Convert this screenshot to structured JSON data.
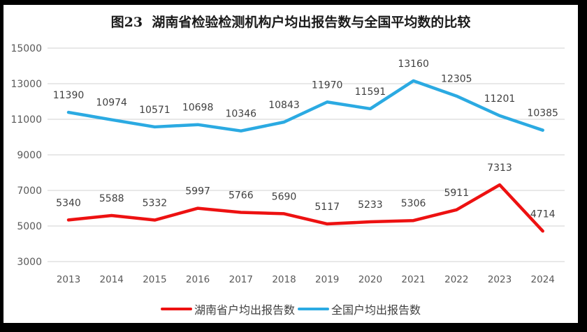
{
  "chart_data": {
    "type": "line",
    "title": "图23  湖南省检验检测机构户均出报告数与全国平均数的比较",
    "categories": [
      "2013",
      "2014",
      "2015",
      "2016",
      "2017",
      "2018",
      "2019",
      "2020",
      "2021",
      "2022",
      "2023",
      "2024"
    ],
    "series": [
      {
        "name": "湖南省户均出报告数",
        "color": "#ED1111",
        "values": [
          5340,
          5588,
          5332,
          5997,
          5766,
          5690,
          5117,
          5233,
          5306,
          5911,
          7313,
          4714
        ]
      },
      {
        "name": "全国户均出报告数",
        "color": "#2BAAE2",
        "values": [
          11390,
          10974,
          10571,
          10698,
          10346,
          10843,
          11970,
          11591,
          13160,
          12305,
          11201,
          10385
        ]
      }
    ],
    "xlabel": "",
    "ylabel": "",
    "ylim": [
      3000,
      15000
    ],
    "ytick_step": 2000,
    "yticks": [
      15000,
      13000,
      11000,
      9000,
      7000,
      5000,
      3000
    ],
    "grid": true,
    "data_labels": true,
    "legend_position": "bottom"
  },
  "styles": {
    "frame_color": "#000000",
    "background": "#FFFFFF",
    "grid_color": "#D9D9D9",
    "axis_text_color": "#595959",
    "label_text_color": "#404040",
    "title_color": "#1A1A1A"
  }
}
